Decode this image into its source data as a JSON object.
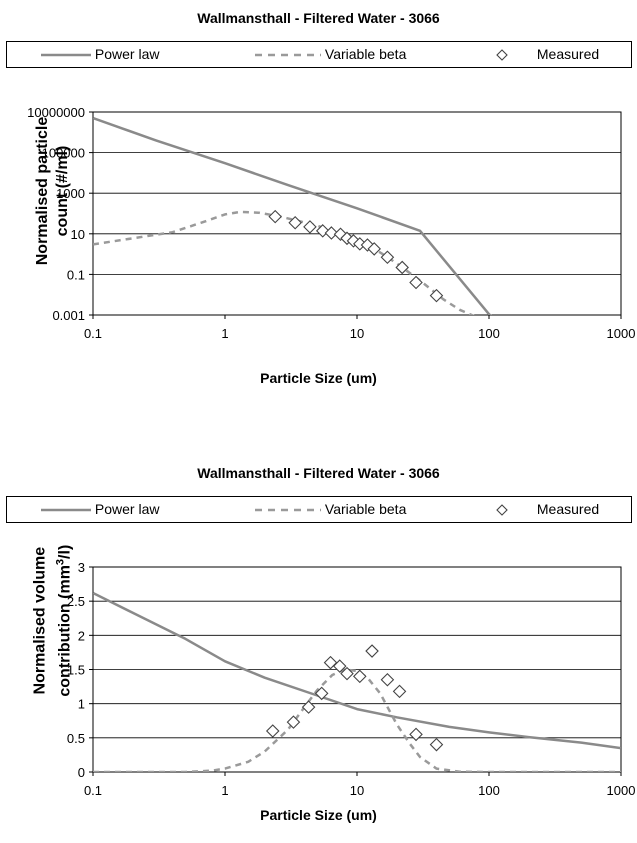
{
  "chart_data": [
    {
      "type": "scatter",
      "title": "Wallmansthall - Filtered Water - 3066",
      "xlabel": "Particle Size (um)",
      "ylabel_lines": [
        "Normalised particle",
        "count (#/ml)"
      ],
      "xscale": "log",
      "yscale": "log",
      "xlim": [
        0.1,
        1000
      ],
      "ylim": [
        0.001,
        10000000
      ],
      "x_ticks": [
        "0.1",
        "1",
        "10",
        "100",
        "1000"
      ],
      "y_ticks": [
        "0.001",
        "0.1",
        "10",
        "1000",
        "100000",
        "10000000"
      ],
      "grid": "horizontal",
      "legend_position": "top",
      "colors": {
        "power_law": "#8a8a8a",
        "variable_beta": "#9a9a9a",
        "measured": "#444444"
      },
      "series": [
        {
          "name": "Power law",
          "style": "solid",
          "x": [
            0.1,
            0.3,
            1,
            3,
            10,
            30,
            100,
            120
          ],
          "y": [
            5000000,
            400000,
            30000,
            2500,
            180,
            14,
            0.0011,
            0.0004
          ]
        },
        {
          "name": "Variable beta",
          "style": "dashed",
          "x": [
            0.1,
            0.2,
            0.4,
            0.7,
            1,
            1.3,
            1.8,
            2.5,
            3.5,
            5,
            7,
            10,
            15,
            20,
            30,
            45,
            60,
            80
          ],
          "y": [
            3,
            6,
            12,
            40,
            90,
            120,
            110,
            75,
            45,
            25,
            12,
            4.5,
            1.2,
            0.35,
            0.05,
            0.006,
            0.0018,
            0.0008
          ]
        },
        {
          "name": "Measured",
          "style": "marker",
          "x": [
            2.4,
            3.4,
            4.4,
            5.5,
            6.4,
            7.5,
            8.4,
            9.4,
            10.5,
            12,
            13.5,
            17,
            22,
            28,
            40
          ],
          "y": [
            70,
            35,
            22,
            14,
            11,
            9.5,
            6,
            4.5,
            3.2,
            2.8,
            1.8,
            0.7,
            0.22,
            0.04,
            0.009
          ]
        }
      ]
    },
    {
      "type": "scatter",
      "title": "Wallmansthall - Filtered Water - 3066",
      "xlabel": "Particle Size (um)",
      "ylabel_line1": "Normalised volume",
      "ylabel_line2_pre": "contribution (mm",
      "ylabel_line2_sup": "3",
      "ylabel_line2_post": "/l)",
      "xscale": "log",
      "yscale": "linear",
      "xlim": [
        0.1,
        1000
      ],
      "ylim": [
        0,
        3
      ],
      "x_ticks": [
        "0.1",
        "1",
        "10",
        "100",
        "1000"
      ],
      "y_ticks": [
        "0",
        "0.5",
        "1",
        "1.5",
        "2",
        "2.5",
        "3"
      ],
      "grid": "horizontal",
      "legend_position": "top",
      "colors": {
        "power_law": "#8a8a8a",
        "variable_beta": "#9a9a9a",
        "measured": "#444444"
      },
      "series": [
        {
          "name": "Power law",
          "style": "solid",
          "x": [
            0.1,
            0.2,
            0.5,
            1,
            2,
            5,
            10,
            20,
            50,
            100,
            200,
            500,
            1000
          ],
          "y": [
            2.62,
            2.33,
            1.95,
            1.62,
            1.38,
            1.12,
            0.92,
            0.8,
            0.66,
            0.58,
            0.51,
            0.43,
            0.35
          ]
        },
        {
          "name": "Variable beta",
          "style": "dashed",
          "x": [
            0.1,
            0.5,
            0.8,
            1,
            1.5,
            2,
            3,
            4,
            5,
            6.5,
            8,
            10,
            12,
            15,
            20,
            25,
            30,
            40,
            60,
            100,
            1000
          ],
          "y": [
            0,
            0,
            0.02,
            0.05,
            0.15,
            0.3,
            0.62,
            0.95,
            1.2,
            1.42,
            1.5,
            1.48,
            1.38,
            1.15,
            0.7,
            0.42,
            0.22,
            0.05,
            0.005,
            0,
            0
          ]
        },
        {
          "name": "Measured",
          "style": "marker",
          "x": [
            2.3,
            3.3,
            4.3,
            5.4,
            6.3,
            7.4,
            8.4,
            10.5,
            13,
            17,
            21,
            28,
            40
          ],
          "y": [
            0.6,
            0.73,
            0.95,
            1.15,
            1.6,
            1.55,
            1.44,
            1.4,
            1.77,
            1.35,
            1.18,
            0.55,
            0.4
          ]
        }
      ]
    }
  ]
}
